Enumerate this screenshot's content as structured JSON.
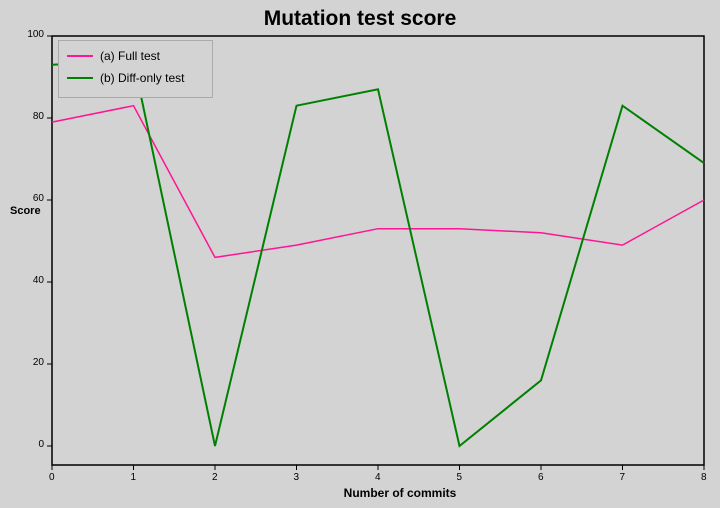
{
  "chart_data": {
    "type": "line",
    "title": "Mutation test score",
    "xlabel": "Number of commits",
    "ylabel": "Score",
    "x": [
      0,
      1,
      2,
      3,
      4,
      5,
      6,
      7,
      8
    ],
    "xlim": [
      0,
      8
    ],
    "ylim": [
      -3,
      100
    ],
    "yticks": [
      0,
      20,
      40,
      60,
      80,
      100
    ],
    "xticks": [
      0,
      1,
      2,
      3,
      4,
      5,
      6,
      7,
      8
    ],
    "grid": false,
    "legend_position": "upper left",
    "series": [
      {
        "name": "(a) Full test",
        "color": "#ff1493",
        "values": [
          79,
          83,
          46,
          49,
          53,
          53,
          52,
          49,
          60
        ]
      },
      {
        "name": "(b) Diff-only test",
        "color": "#008000",
        "values": [
          93,
          94,
          0,
          83,
          87,
          0,
          16,
          83,
          69
        ]
      }
    ]
  },
  "legend": {
    "items": [
      {
        "label": "(a) Full test",
        "color": "#ff1493"
      },
      {
        "label": "(b) Diff-only test",
        "color": "#008000"
      }
    ]
  }
}
